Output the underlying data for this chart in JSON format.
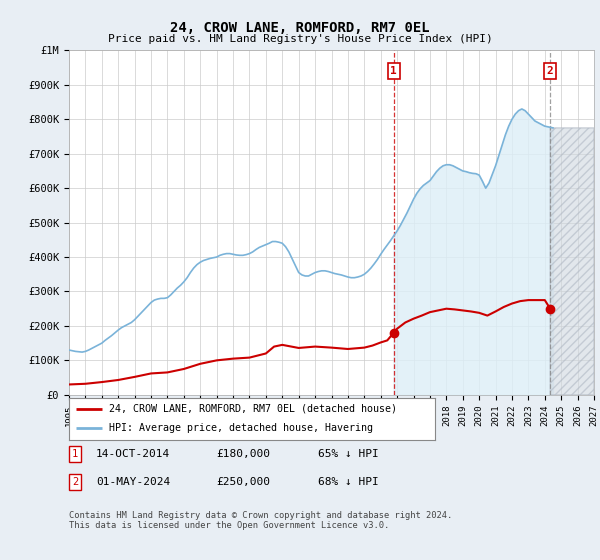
{
  "title": "24, CROW LANE, ROMFORD, RM7 0EL",
  "subtitle": "Price paid vs. HM Land Registry's House Price Index (HPI)",
  "ylim": [
    0,
    1000000
  ],
  "yticks": [
    0,
    100000,
    200000,
    300000,
    400000,
    500000,
    600000,
    700000,
    800000,
    900000,
    1000000
  ],
  "ytick_labels": [
    "£0",
    "£100K",
    "£200K",
    "£300K",
    "£400K",
    "£500K",
    "£600K",
    "£700K",
    "£800K",
    "£900K",
    "£1M"
  ],
  "hpi_color": "#7ab3d9",
  "hpi_fill_color": "#ddeef7",
  "price_color": "#cc0000",
  "annotation_color_1": "#cc0000",
  "annotation_color_2": "#aaaaaa",
  "grid_color": "#cccccc",
  "bg_color": "#e8eef4",
  "plot_bg": "#ffffff",
  "legend_label_red": "24, CROW LANE, ROMFORD, RM7 0EL (detached house)",
  "legend_label_blue": "HPI: Average price, detached house, Havering",
  "sale1_date": "14-OCT-2014",
  "sale1_price": "£180,000",
  "sale1_hpi": "65% ↓ HPI",
  "sale1_year": 2014.79,
  "sale1_value": 180000,
  "sale2_date": "01-MAY-2024",
  "sale2_price": "£250,000",
  "sale2_hpi": "68% ↓ HPI",
  "sale2_year": 2024.33,
  "sale2_value": 250000,
  "footer": "Contains HM Land Registry data © Crown copyright and database right 2024.\nThis data is licensed under the Open Government Licence v3.0.",
  "xmin": 1995,
  "xmax": 2027
}
